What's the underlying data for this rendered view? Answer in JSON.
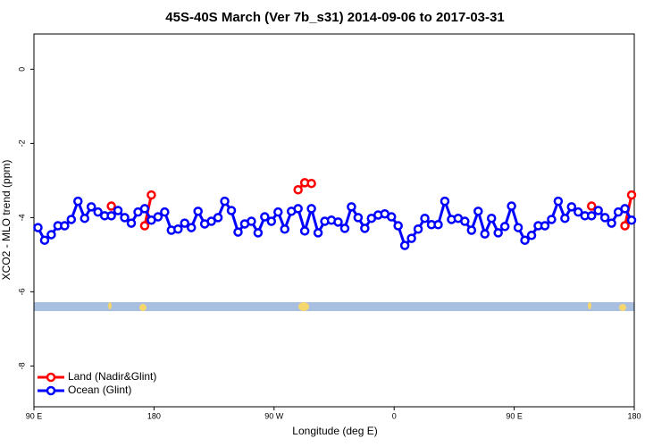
{
  "chart_data": {
    "type": "line",
    "title": "45S-40S March (Ver 7b_s31)   2014-09-06 to 2017-03-31",
    "x_label": "Longitude (deg E)",
    "y_label": "XCO2 - MLO trend (ppm)",
    "xlim": [
      90,
      540
    ],
    "ylim": [
      -9.1,
      0.95
    ],
    "xticks": [
      {
        "value": 90,
        "label": "90 E"
      },
      180,
      {
        "value": 270,
        "label": "90 W"
      },
      {
        "value": 360,
        "label": "0"
      },
      {
        "value": 450,
        "label": "90 E"
      },
      {
        "value": 540,
        "label": "180"
      }
    ],
    "yticks": [
      0,
      -2,
      -4,
      -6,
      -8
    ],
    "legend": "bottomleft",
    "series": [
      {
        "name": "Land (Nadir&Glint)",
        "color": "#ff0000",
        "x": [
          148,
          153,
          173,
          178,
          183,
          288,
          293,
          298,
          303,
          508,
          513,
          533,
          538
        ],
        "values": [
          -3.69,
          null,
          -4.22,
          -3.39,
          null,
          -3.25,
          -3.06,
          -3.08,
          null,
          -3.69,
          null,
          -4.22,
          -3.39
        ]
      },
      {
        "name": "Ocean (Glint)",
        "color": "#0000ff",
        "x": [
          93,
          98,
          103,
          108,
          113,
          118,
          123,
          128,
          133,
          138,
          143,
          148,
          153,
          158,
          163,
          168,
          173,
          178,
          183,
          188,
          193,
          198,
          203,
          208,
          213,
          218,
          223,
          228,
          233,
          238,
          243,
          248,
          253,
          258,
          263,
          268,
          273,
          278,
          283,
          288,
          293,
          298,
          303,
          308,
          313,
          318,
          323,
          328,
          333,
          338,
          343,
          348,
          353,
          358,
          363,
          368,
          373,
          378,
          383,
          388,
          393,
          398,
          403,
          408,
          413,
          418,
          423,
          428,
          433,
          438,
          443,
          448,
          453,
          458,
          463,
          468,
          473,
          478,
          483,
          488,
          493,
          498,
          503,
          508,
          513,
          518,
          523,
          528,
          533,
          538
        ],
        "values": [
          -4.27,
          -4.61,
          -4.46,
          -4.22,
          -4.22,
          -4.05,
          -3.56,
          -4.02,
          -3.71,
          -3.85,
          -3.95,
          -3.95,
          -3.81,
          -4.0,
          -4.15,
          -3.85,
          -3.76,
          -4.07,
          -3.98,
          -3.85,
          -4.34,
          -4.31,
          -4.15,
          -4.27,
          -3.83,
          -4.17,
          -4.1,
          -4.0,
          -3.56,
          -3.81,
          -4.39,
          -4.17,
          -4.1,
          -4.41,
          -3.98,
          -4.1,
          -3.85,
          -4.31,
          -3.83,
          -3.76,
          -4.36,
          -3.76,
          -4.41,
          -4.1,
          -4.07,
          -4.12,
          -4.29,
          -3.71,
          -4.0,
          -4.29,
          -4.02,
          -3.93,
          -3.9,
          -3.98,
          -4.22,
          -4.75,
          -4.56,
          -4.31,
          -4.02,
          -4.19,
          -4.19,
          -3.56,
          -4.05,
          -4.02,
          -4.1,
          -4.34,
          -3.83,
          -4.44,
          -4.02,
          -4.41,
          -4.24,
          -3.69,
          -4.27,
          -4.61,
          -4.48,
          -4.22,
          -4.22,
          -4.05,
          -3.56,
          -4.02,
          -3.71,
          -3.85,
          -3.95,
          -3.95,
          -3.81,
          -4.0,
          -4.15,
          -3.85,
          -3.76,
          -4.07
        ]
      }
    ]
  }
}
